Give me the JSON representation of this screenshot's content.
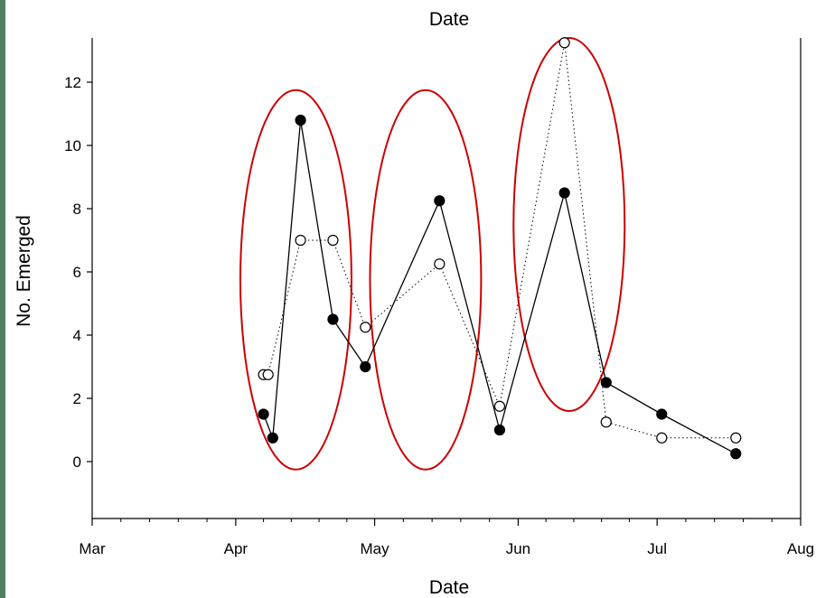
{
  "chart_data": {
    "type": "line",
    "title": "Date",
    "xlabel": "Date",
    "ylabel": "No. Emerged",
    "x_ticks": [
      "Mar",
      "Apr",
      "May",
      "Jun",
      "Jul",
      "Aug"
    ],
    "y_ticks": [
      "0",
      "2",
      "4",
      "6",
      "8",
      "10",
      "12"
    ],
    "xlim": [
      "2000-03-01",
      "2000-08-01"
    ],
    "ylim": [
      -1.8,
      13.4
    ],
    "grid": false,
    "series": [
      {
        "style": "solid-filled",
        "color": "#000000",
        "points": [
          {
            "x": "2000-04-07",
            "y": 1.5
          },
          {
            "x": "2000-04-09",
            "y": 0.75
          },
          {
            "x": "2000-04-15",
            "y": 10.8
          },
          {
            "x": "2000-04-22",
            "y": 4.5
          },
          {
            "x": "2000-04-29",
            "y": 3.0
          },
          {
            "x": "2000-05-15",
            "y": 8.25
          },
          {
            "x": "2000-05-28",
            "y": 1.0
          },
          {
            "x": "2000-06-11",
            "y": 8.5
          },
          {
            "x": "2000-06-20",
            "y": 2.5
          },
          {
            "x": "2000-07-02",
            "y": 1.5
          },
          {
            "x": "2000-07-18",
            "y": 0.25
          }
        ]
      },
      {
        "style": "dotted-open",
        "color": "#000000",
        "points": [
          {
            "x": "2000-04-07",
            "y": 2.75
          },
          {
            "x": "2000-04-08",
            "y": 2.75
          },
          {
            "x": "2000-04-15",
            "y": 7.0
          },
          {
            "x": "2000-04-22",
            "y": 7.0
          },
          {
            "x": "2000-04-29",
            "y": 4.25
          },
          {
            "x": "2000-05-15",
            "y": 6.25
          },
          {
            "x": "2000-05-28",
            "y": 1.75
          },
          {
            "x": "2000-06-11",
            "y": 13.25
          },
          {
            "x": "2000-06-20",
            "y": 1.25
          },
          {
            "x": "2000-07-02",
            "y": 0.75
          },
          {
            "x": "2000-07-18",
            "y": 0.75
          }
        ]
      }
    ],
    "annotations": {
      "color": "#cc0000",
      "ellipses": [
        {
          "center_x": "2000-04-14",
          "center_y": 5.75,
          "half_width_days": 12,
          "half_height": 6.0
        },
        {
          "center_x": "2000-05-12",
          "center_y": 5.75,
          "half_width_days": 12,
          "half_height": 6.0
        },
        {
          "center_x": "2000-06-12",
          "center_y": 7.5,
          "half_width_days": 12,
          "half_height": 5.9
        }
      ]
    }
  }
}
